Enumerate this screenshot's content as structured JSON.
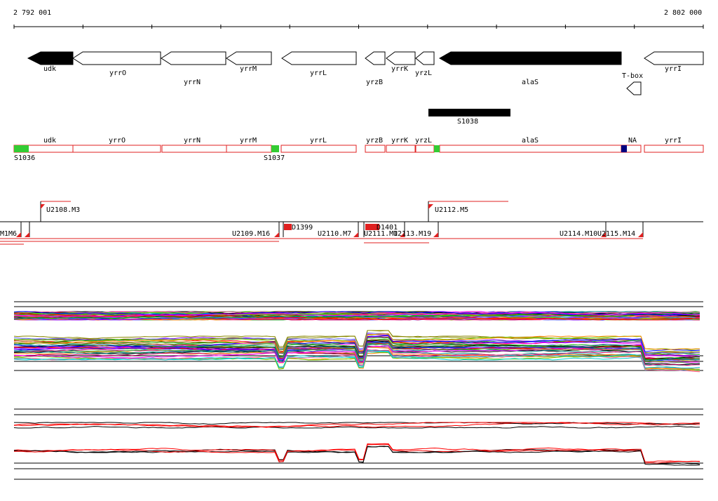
{
  "ruler": {
    "start_label": "2 792 001",
    "end_label": "2 802 000"
  },
  "genes": [
    {
      "label": "udk",
      "filled": true
    },
    {
      "label": "yrrO",
      "filled": false
    },
    {
      "label": "yrrN",
      "filled": false
    },
    {
      "label": "yrrM",
      "filled": false
    },
    {
      "label": "yrrL",
      "filled": false
    },
    {
      "label": "yrzB",
      "filled": false
    },
    {
      "label": "yrrK",
      "filled": false
    },
    {
      "label": "yrzL",
      "filled": false
    },
    {
      "label": "alaS",
      "filled": true
    },
    {
      "label": "T-box",
      "filled": false
    },
    {
      "label": "yrrI",
      "filled": false
    }
  ],
  "segment_label": "S1038",
  "annotation_track": {
    "labels": [
      "udk",
      "yrrO",
      "yrrN",
      "yrrM",
      "yrrL",
      "yrzB",
      "yrrK",
      "yrzL",
      "alaS",
      "NA",
      "yrrI"
    ],
    "markers": [
      "S1036",
      "S1037"
    ]
  },
  "transcripts": [
    "U2108.M3",
    "U2112.M5",
    "M1M6",
    "U2109.M16",
    "U2110.M7",
    "U2111.M1",
    "U2113.M19",
    "U2114.M10",
    "U2115.M14"
  ],
  "features": [
    "D1399",
    "D1401"
  ],
  "colors": {
    "accent": "#ff0000",
    "filled_gene": "#000000",
    "marker_green": "#33cc33",
    "marker_blue": "#000080"
  }
}
